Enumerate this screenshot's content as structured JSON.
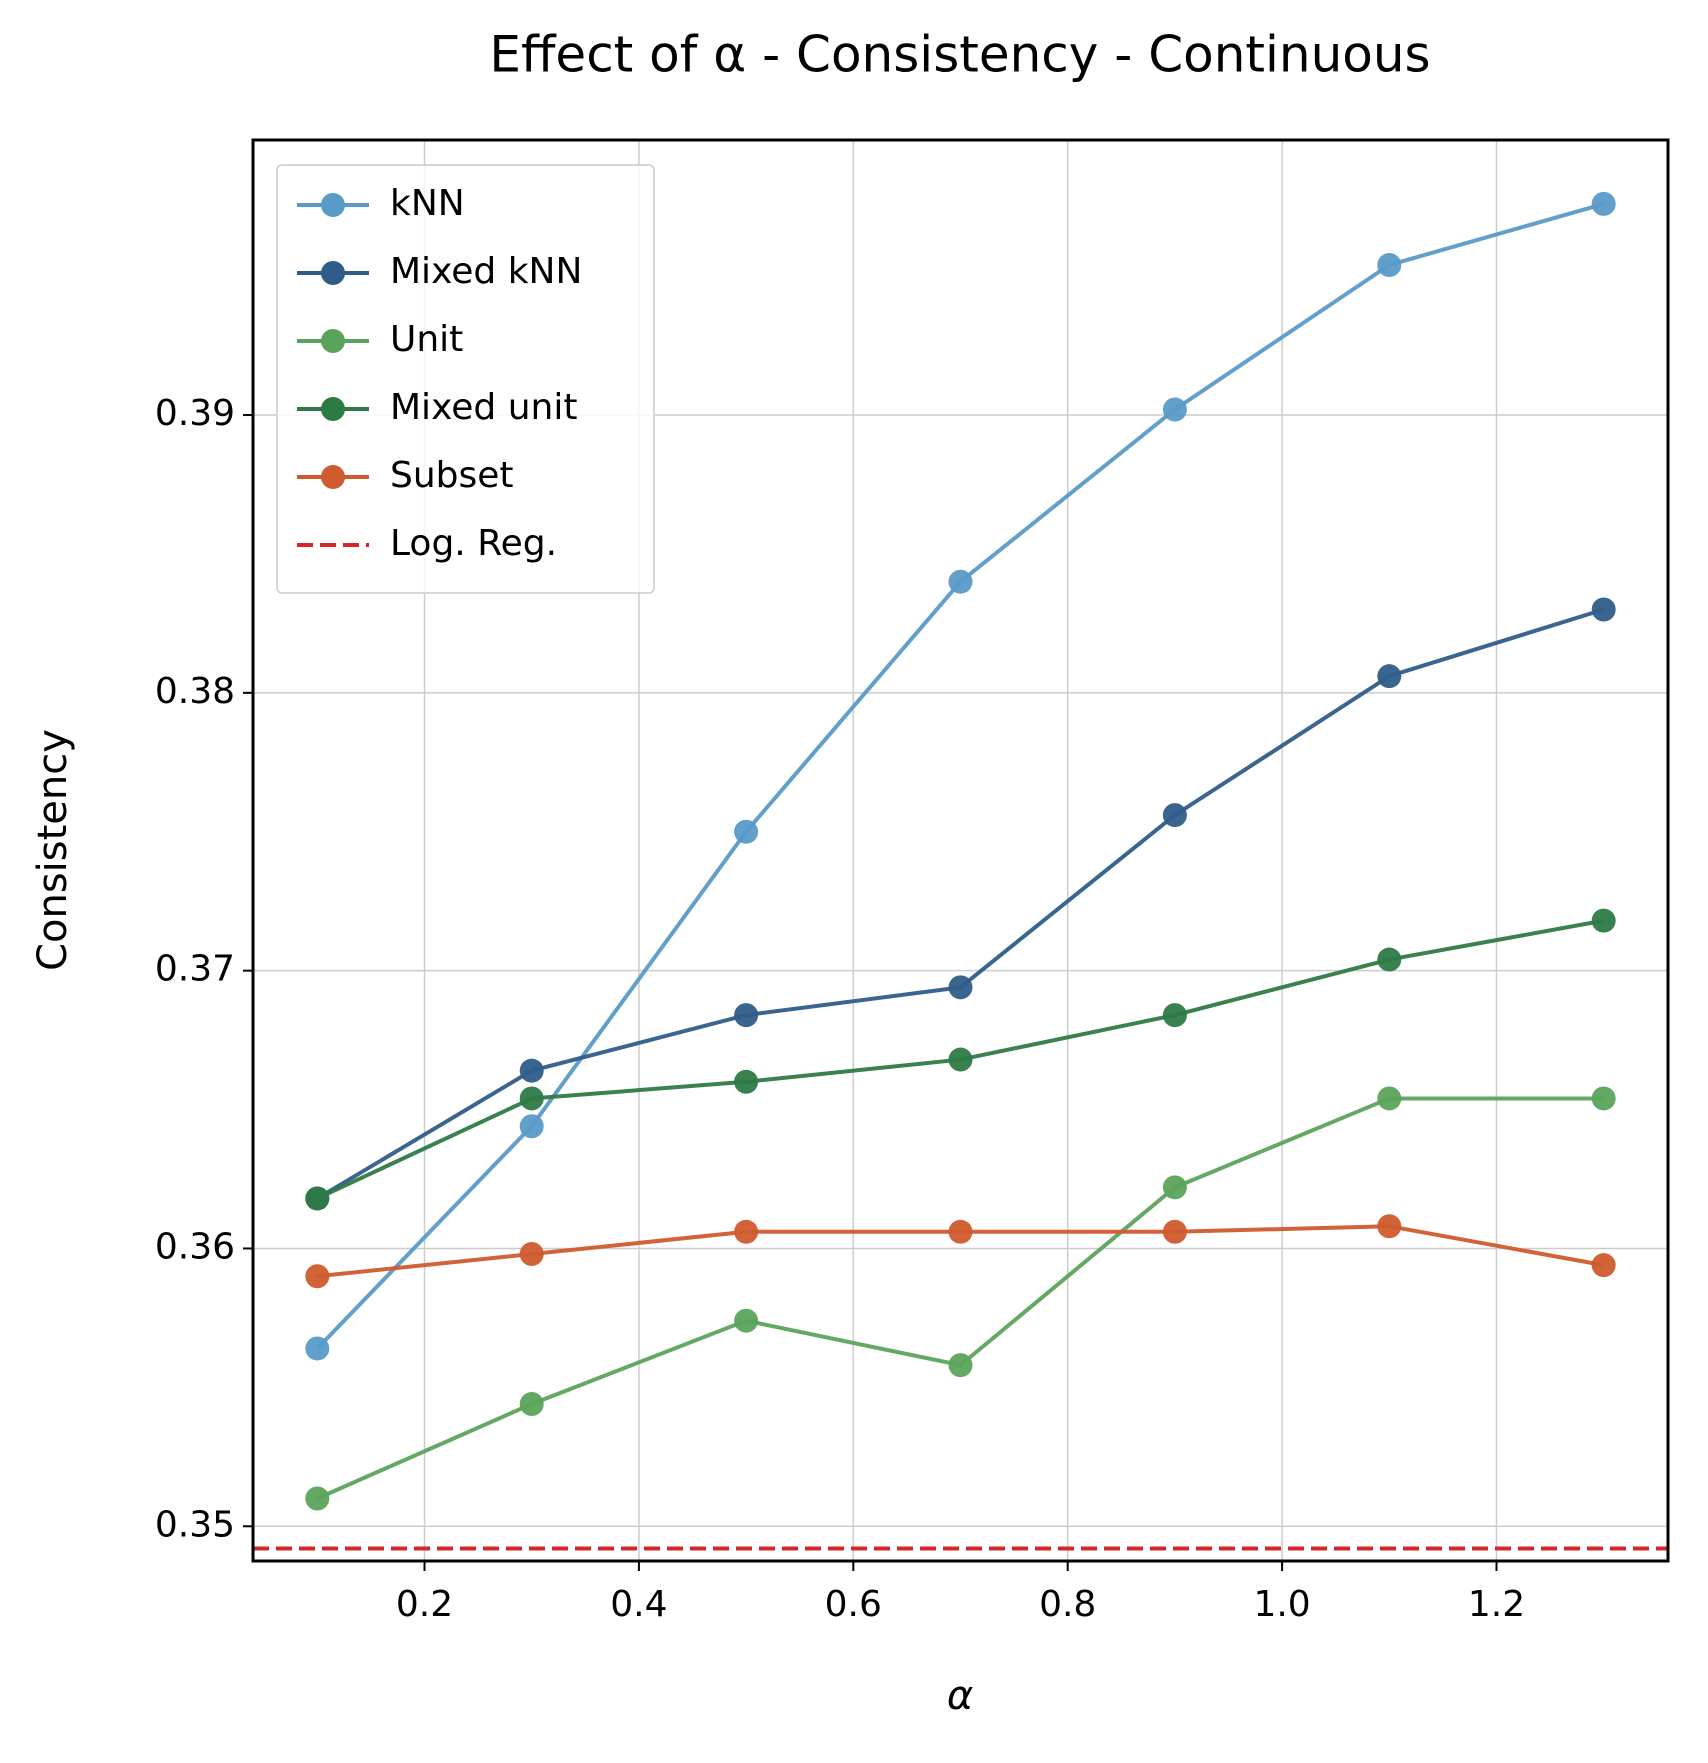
{
  "chart_data": {
    "type": "line",
    "title": "Effect of α - Consistency - Continuous",
    "xlabel": "α",
    "ylabel": "Consistency",
    "x": [
      0.1,
      0.3,
      0.5,
      0.7,
      0.9,
      1.1,
      1.3
    ],
    "series": [
      {
        "name": "kNN",
        "color": "#5a9ac8",
        "values": [
          0.3564,
          0.3644,
          0.375,
          0.384,
          0.3902,
          0.3954,
          0.3976
        ]
      },
      {
        "name": "Mixed kNN",
        "color": "#2f5d89",
        "values": [
          0.3618,
          0.3664,
          0.3684,
          0.3694,
          0.3756,
          0.3806,
          0.383
        ]
      },
      {
        "name": "Unit",
        "color": "#5ba35b",
        "values": [
          0.351,
          0.3544,
          0.3574,
          0.3558,
          0.3622,
          0.3654,
          0.3654
        ]
      },
      {
        "name": "Mixed unit",
        "color": "#2e7a45",
        "values": [
          0.3618,
          0.3654,
          0.366,
          0.3668,
          0.3684,
          0.3704,
          0.3718
        ]
      },
      {
        "name": "Subset",
        "color": "#d05b2e",
        "values": [
          0.359,
          0.3598,
          0.3606,
          0.3606,
          0.3606,
          0.3608,
          0.3594
        ]
      }
    ],
    "hline": {
      "name": "Log. Reg.",
      "color": "#d62728",
      "value": 0.3492
    },
    "xlim": [
      0.04,
      1.36
    ],
    "ylim": [
      0.34875,
      0.3999
    ],
    "xticks": [
      0.2,
      0.4,
      0.6,
      0.8,
      {
        "value": 1.0,
        "label": "1.0"
      },
      1.2
    ],
    "yticks": [
      0.35,
      0.36,
      0.37,
      0.38,
      0.39
    ],
    "grid": true,
    "legend": "upper left"
  }
}
